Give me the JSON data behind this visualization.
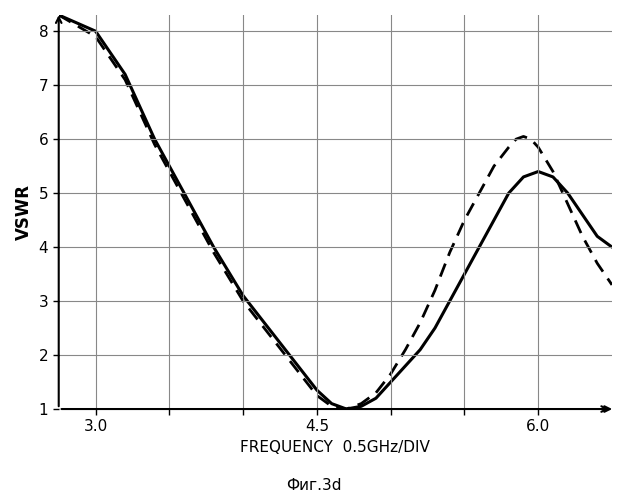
{
  "title": "",
  "xlabel": "FREQUENCY  0.5GHz/DIV",
  "ylabel": "VSWR",
  "caption": "Фиг.3d",
  "xlim": [
    2.75,
    6.5
  ],
  "ylim": [
    1.0,
    8.3
  ],
  "xticks": [
    3.0,
    3.5,
    4.0,
    4.5,
    5.0,
    5.5,
    6.0
  ],
  "xtick_labels": [
    "3.0",
    "",
    "",
    "4.5",
    "",
    "",
    "6.0"
  ],
  "yticks": [
    1,
    2,
    3,
    4,
    5,
    6,
    7,
    8
  ],
  "grid_color": "#888888",
  "bg_color": "#ffffff",
  "line_color": "#000000",
  "solid_x": [
    2.75,
    3.0,
    3.2,
    3.4,
    3.6,
    3.8,
    4.0,
    4.2,
    4.4,
    4.5,
    4.6,
    4.7,
    4.8,
    4.9,
    5.0,
    5.1,
    5.2,
    5.3,
    5.4,
    5.5,
    5.6,
    5.7,
    5.8,
    5.9,
    6.0,
    6.1,
    6.2,
    6.3,
    6.4,
    6.5
  ],
  "solid_y": [
    8.3,
    8.0,
    7.2,
    6.0,
    5.0,
    4.0,
    3.1,
    2.4,
    1.7,
    1.35,
    1.1,
    1.0,
    1.05,
    1.2,
    1.5,
    1.8,
    2.1,
    2.5,
    3.0,
    3.5,
    4.0,
    4.5,
    5.0,
    5.3,
    5.4,
    5.3,
    5.0,
    4.6,
    4.2,
    4.0
  ],
  "dashed_x": [
    2.75,
    3.0,
    3.2,
    3.4,
    3.6,
    3.8,
    4.0,
    4.2,
    4.4,
    4.5,
    4.6,
    4.7,
    4.8,
    4.9,
    5.0,
    5.1,
    5.2,
    5.3,
    5.4,
    5.5,
    5.6,
    5.7,
    5.8,
    5.85,
    5.9,
    5.95,
    6.0,
    6.1,
    6.2,
    6.3,
    6.4,
    6.5
  ],
  "dashed_y": [
    8.3,
    7.9,
    7.1,
    5.9,
    4.9,
    3.9,
    3.0,
    2.3,
    1.6,
    1.25,
    1.05,
    1.0,
    1.1,
    1.3,
    1.65,
    2.1,
    2.6,
    3.2,
    3.9,
    4.5,
    5.0,
    5.5,
    5.85,
    6.0,
    6.05,
    6.0,
    5.85,
    5.4,
    4.8,
    4.2,
    3.7,
    3.3
  ]
}
